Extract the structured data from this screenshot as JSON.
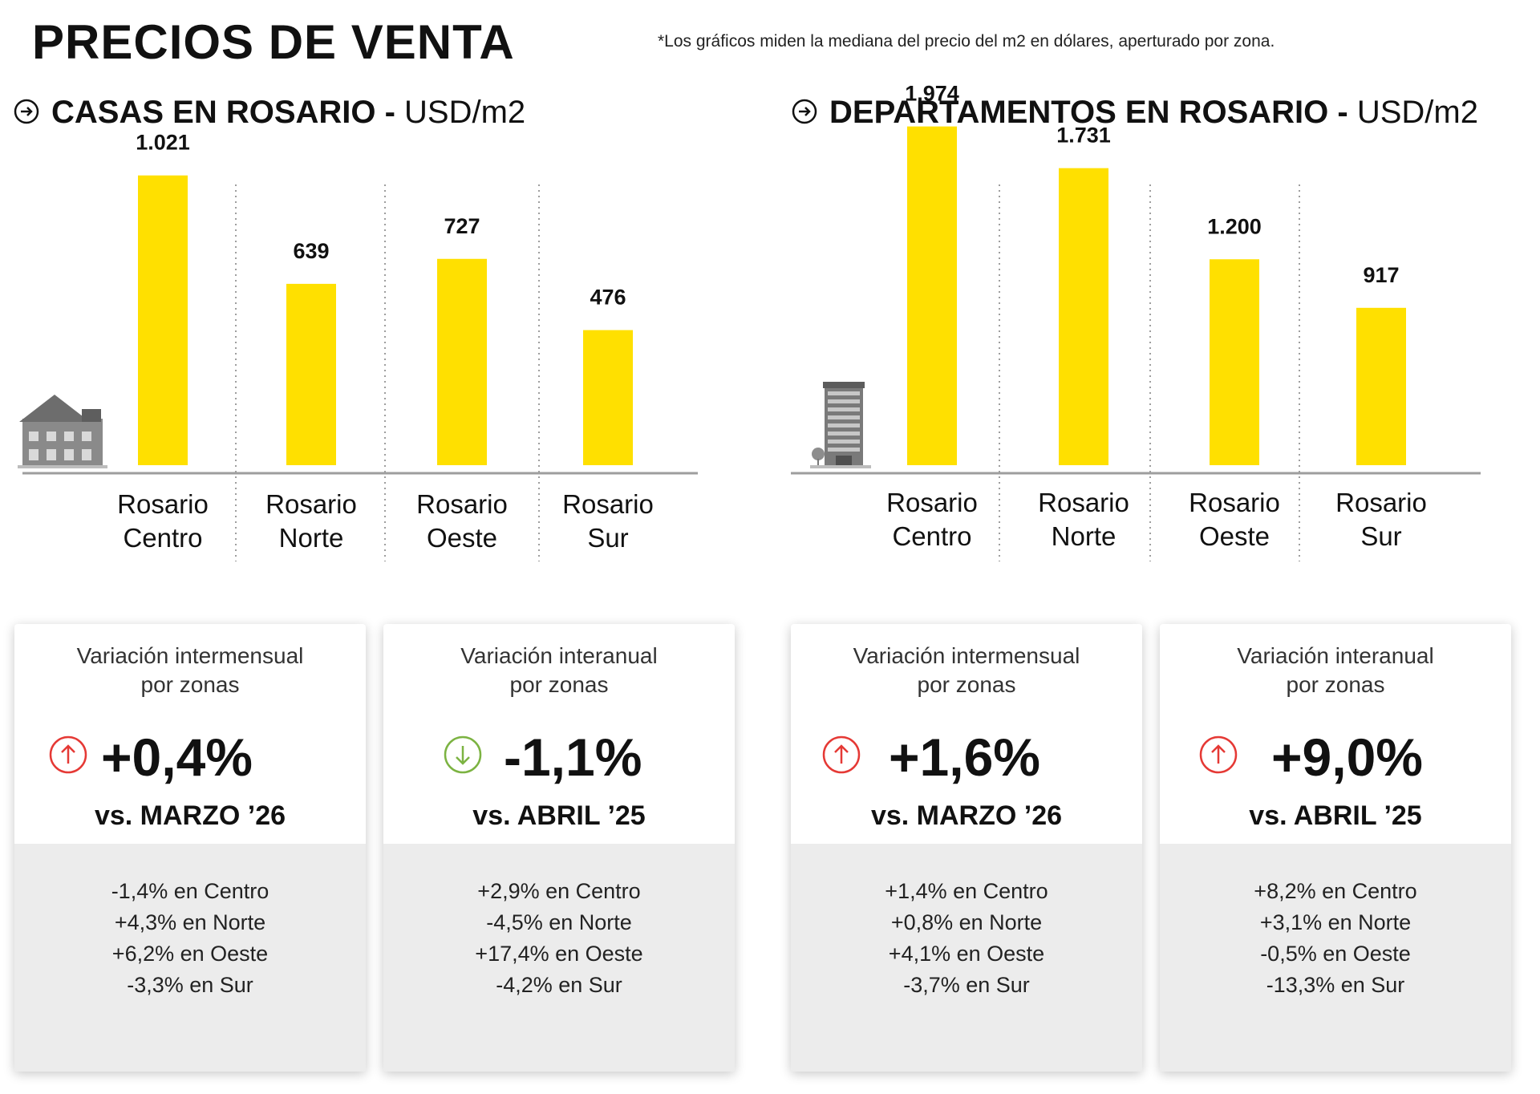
{
  "title": "PRECIOS DE VENTA",
  "footnote": "*Los gráficos miden  la mediana del precio del m2 en dólares, aperturado por zona.",
  "sections": {
    "casas": {
      "title": "CASAS EN ROSARIO",
      "sep": " - ",
      "unit": "USD/m2"
    },
    "deptos": {
      "title": "DEPARTAMENTOS EN ROSARIO",
      "sep": " - ",
      "unit": "USD/m2"
    }
  },
  "chart_data": [
    {
      "type": "bar",
      "categories": [
        "Rosario Centro",
        "Rosario Norte",
        "Rosario Oeste",
        "Rosario Sur"
      ],
      "values": [
        1021,
        639,
        727,
        476
      ],
      "value_labels": [
        "1.021",
        "639",
        "727",
        "476"
      ],
      "title": "CASAS EN ROSARIO - USD/m2",
      "ylim": [
        0,
        1300
      ],
      "color": "#FFE000",
      "icon": "house-icon"
    },
    {
      "type": "bar",
      "categories": [
        "Rosario Centro",
        "Rosario Norte",
        "Rosario Oeste",
        "Rosario Sur"
      ],
      "values": [
        1974,
        1731,
        1200,
        917
      ],
      "value_labels": [
        "1.974",
        "1.731",
        "1.200",
        "917"
      ],
      "title": "DEPARTAMENTOS EN ROSARIO - USD/m2",
      "ylim": [
        0,
        2150
      ],
      "color": "#FFE000",
      "icon": "building-icon"
    }
  ],
  "cards": [
    {
      "head1": "Variación intermensual",
      "head2": "por zonas",
      "value": "+0,4%",
      "direction": "up",
      "compare": "vs. MARZO ’26",
      "lines": [
        "-1,4% en Centro",
        "+4,3% en Norte",
        "+6,2% en Oeste",
        "-3,3% en Sur"
      ]
    },
    {
      "head1": "Variación interanual",
      "head2": "por zonas",
      "value": "-1,1%",
      "direction": "down",
      "compare": "vs. ABRIL ’25",
      "lines": [
        "+2,9% en Centro",
        "-4,5% en Norte",
        "+17,4% en Oeste",
        "-4,2% en Sur"
      ]
    },
    {
      "head1": "Variación intermensual",
      "head2": "por zonas",
      "value": "+1,6%",
      "direction": "up",
      "compare": "vs. MARZO ’26",
      "lines": [
        "+1,4% en Centro",
        "+0,8% en Norte",
        "+4,1% en Oeste",
        "-3,7% en Sur"
      ]
    },
    {
      "head1": "Variación interanual",
      "head2": "por zonas",
      "value": "+9,0%",
      "direction": "up",
      "compare": "vs. ABRIL ’25",
      "lines": [
        "+8,2% en Centro",
        "+3,1%  en Norte",
        "-0,5% en Oeste",
        "-13,3% en Sur"
      ]
    }
  ],
  "colors": {
    "bar": "#FFE000",
    "up": "#E53935",
    "down": "#7CB342",
    "panel": "#ECECEC"
  }
}
